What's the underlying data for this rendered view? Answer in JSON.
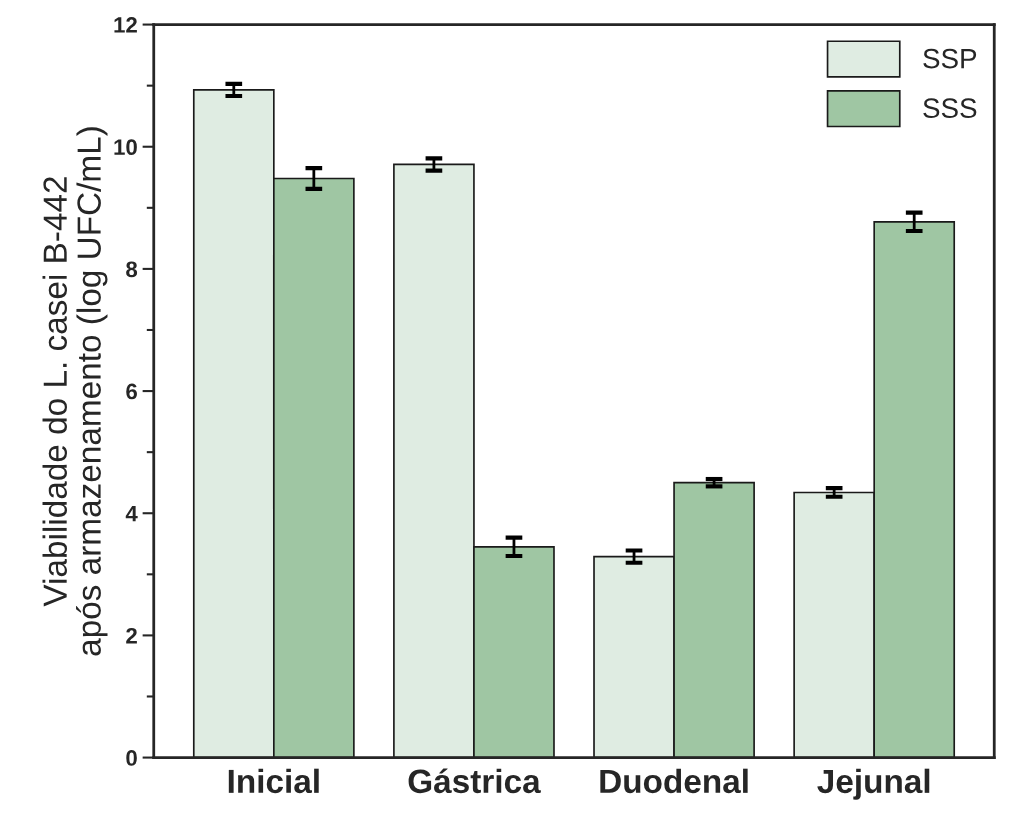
{
  "chart_data": {
    "type": "bar",
    "ylabel": "Viabilidade do L. casei B-442\napós armazenamento (log UFC/mL)",
    "categories": [
      "Inicial",
      "Gástrica",
      "Duodenal",
      "Jejunal"
    ],
    "series": [
      {
        "name": "SSP",
        "color": "#dfece2",
        "values": [
          10.93,
          9.71,
          3.29,
          4.34
        ],
        "errors": [
          0.1,
          0.1,
          0.1,
          0.07
        ]
      },
      {
        "name": "SSS",
        "color": "#9fc6a3",
        "values": [
          9.48,
          3.45,
          4.5,
          8.77
        ],
        "errors": [
          0.17,
          0.15,
          0.06,
          0.15
        ]
      }
    ],
    "ylim": [
      0,
      12
    ],
    "yticks": [
      0,
      2,
      4,
      6,
      8,
      10,
      12
    ],
    "grid": false,
    "legend": "top right"
  }
}
